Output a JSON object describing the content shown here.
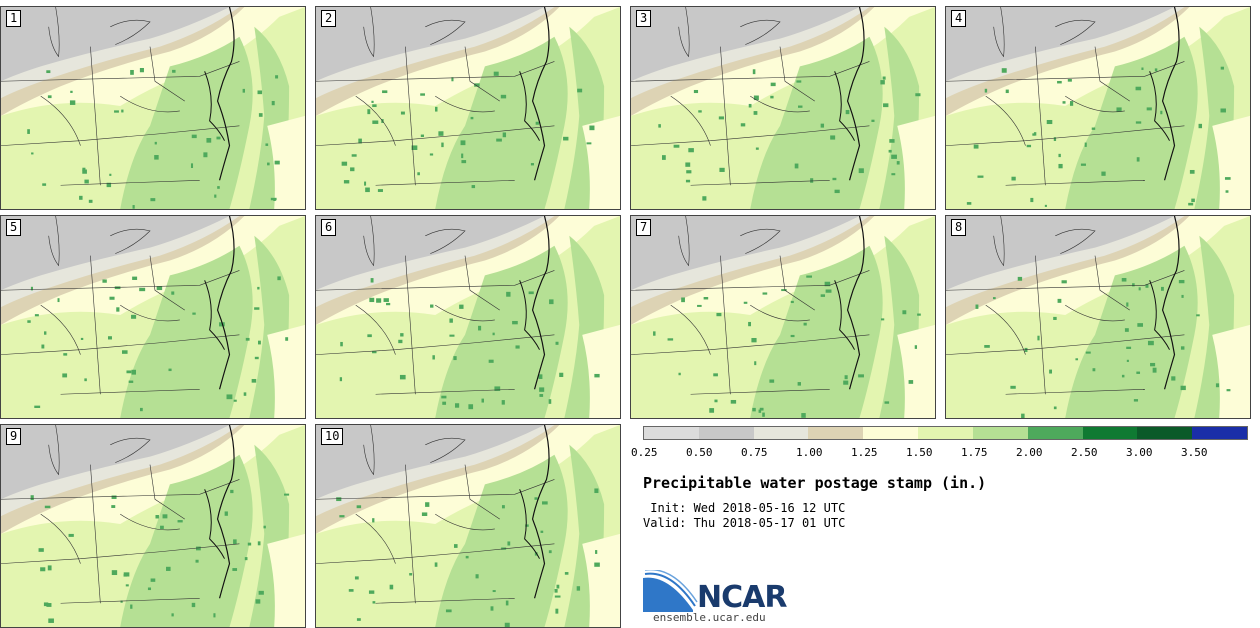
{
  "panels": [
    {
      "label": "1"
    },
    {
      "label": "2"
    },
    {
      "label": "3"
    },
    {
      "label": "4"
    },
    {
      "label": "5"
    },
    {
      "label": "6"
    },
    {
      "label": "7"
    },
    {
      "label": "8"
    },
    {
      "label": "9"
    },
    {
      "label": "10"
    }
  ],
  "colorbar": {
    "colors": [
      "#dcdcdc",
      "#c8c8c8",
      "#e6e6dc",
      "#ddd3b4",
      "#fdfdd7",
      "#e3f5b0",
      "#b5e094",
      "#4ea95c",
      "#0f7a32",
      "#0b5a29",
      "#1a2ea8"
    ],
    "ticks": [
      "0.25",
      "0.50",
      "0.75",
      "1.00",
      "1.25",
      "1.50",
      "1.75",
      "2.00",
      "2.50",
      "3.00",
      "3.50"
    ]
  },
  "title": "Precipitable water postage stamp (in.)",
  "init": " Init: Wed 2018-05-16 12 UTC",
  "valid": "Valid: Thu 2018-05-17 01 UTC",
  "logo": {
    "name": "NCAR",
    "url": "ensemble.ucar.edu"
  }
}
